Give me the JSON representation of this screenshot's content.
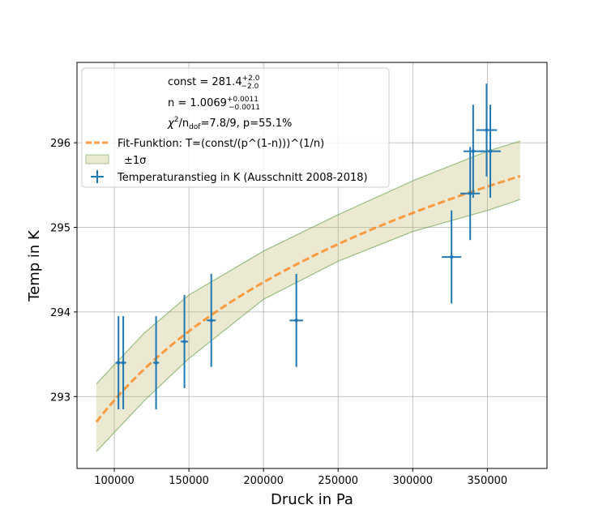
{
  "chart_data": {
    "type": "scatter",
    "xlabel": "Druck in Pa",
    "ylabel": "Temp in K",
    "xlim": [
      75000,
      390000
    ],
    "ylim": [
      292.15,
      296.95
    ],
    "x_ticks": [
      100000,
      150000,
      200000,
      250000,
      300000,
      350000
    ],
    "x_tick_labels": [
      "100000",
      "150000",
      "200000",
      "250000",
      "300000",
      "350000"
    ],
    "y_ticks": [
      293,
      294,
      295,
      296
    ],
    "y_tick_labels": [
      "293",
      "294",
      "295",
      "296"
    ],
    "grid": true,
    "legend_position": "upper-left",
    "colors": {
      "data": "#1f77b4",
      "fit": "#ff7f0e",
      "band_fill": "#bdb76b",
      "band_edge": "#5b9a3c"
    },
    "fit": {
      "name": "Fit-Funktion: T=(const/(p^(1-n)))^(1/n)",
      "const": 281.4,
      "n": 1.0069,
      "x_range": [
        88000,
        372000
      ]
    },
    "band": {
      "name": "±1σ",
      "x": [
        88000,
        120000,
        150000,
        200000,
        250000,
        300000,
        350000,
        372000
      ],
      "lower": [
        292.35,
        292.95,
        293.45,
        294.15,
        294.6,
        294.95,
        295.2,
        295.33
      ],
      "upper": [
        293.15,
        293.75,
        294.2,
        294.72,
        295.15,
        295.55,
        295.9,
        296.02
      ]
    },
    "series": [
      {
        "name": "Temperaturanstieg in K (Ausschnitt 2008-2018)",
        "points": [
          {
            "x": 102800,
            "y": 293.4,
            "xerr": 2000,
            "yerr": 0.55
          },
          {
            "x": 106000,
            "y": 293.4,
            "xerr": 2000,
            "yerr": 0.55
          },
          {
            "x": 128000,
            "y": 293.4,
            "xerr": 2000,
            "yerr": 0.55
          },
          {
            "x": 147000,
            "y": 293.65,
            "xerr": 2500,
            "yerr": 0.55
          },
          {
            "x": 165000,
            "y": 293.9,
            "xerr": 3000,
            "yerr": 0.55
          },
          {
            "x": 222000,
            "y": 293.9,
            "xerr": 4500,
            "yerr": 0.55
          },
          {
            "x": 326000,
            "y": 294.65,
            "xerr": 6500,
            "yerr": 0.55
          },
          {
            "x": 338500,
            "y": 295.4,
            "xerr": 6500,
            "yerr": 0.55
          },
          {
            "x": 340500,
            "y": 295.9,
            "xerr": 6500,
            "yerr": 0.55
          },
          {
            "x": 349500,
            "y": 296.15,
            "xerr": 7000,
            "yerr": 0.55
          },
          {
            "x": 352000,
            "y": 295.9,
            "xerr": 7000,
            "yerr": 0.55
          }
        ]
      }
    ],
    "annotations": {
      "const_label": "const = 281.4",
      "const_sup": "+2.0",
      "const_sub": "−2.0",
      "n_label": "n = 1.0069",
      "n_sup": "+0.0011",
      "n_sub": "−0.0011",
      "chi_label": "χ",
      "chi_sup": "2",
      "chi_mid": "/n",
      "chi_sub": "dof",
      "chi_rest": "=7.8/9, p=55.1%"
    }
  }
}
